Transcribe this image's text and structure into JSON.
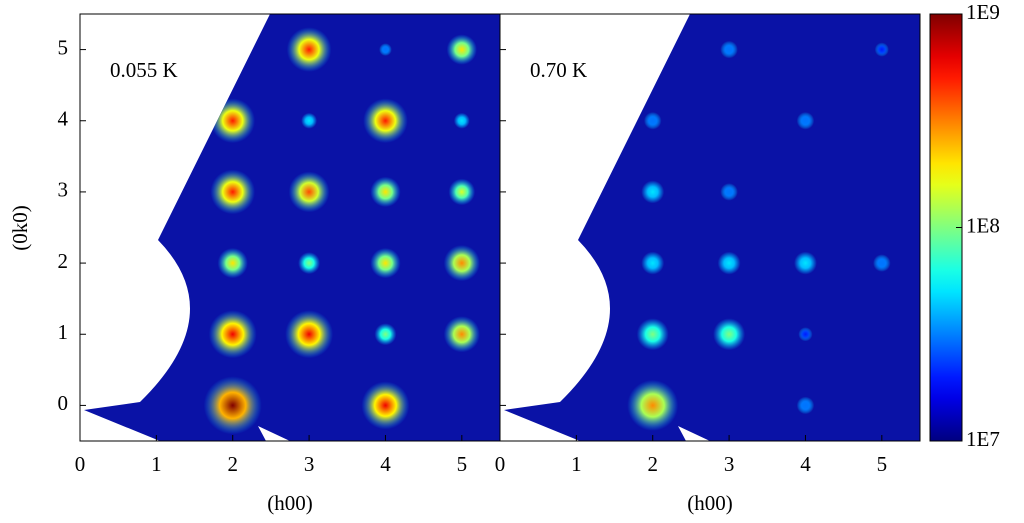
{
  "chart_data": [
    {
      "type": "spot-map",
      "annotation": "0.055 K",
      "xlabel": "(h00)",
      "ylabel": "(0k0)",
      "xlim": [
        0,
        5.5
      ],
      "ylim": [
        -0.5,
        5.5
      ],
      "xticks": [
        0,
        1,
        2,
        3,
        4,
        5
      ],
      "yticks": [
        0,
        1,
        2,
        3,
        4,
        5
      ],
      "zscale": "log",
      "colormap": "jet",
      "zlim": [
        10000000,
        1000000000
      ],
      "zticks": [
        {
          "value": 10000000,
          "label": "1E7"
        },
        {
          "value": 100000000,
          "label": "1E8"
        },
        {
          "value": 1000000000,
          "label": "1E9"
        }
      ],
      "x": [
        2,
        4,
        2,
        3,
        4,
        5,
        2,
        3,
        4,
        5,
        2,
        3,
        4,
        5,
        2,
        3,
        4,
        5,
        3,
        4,
        5
      ],
      "y": [
        0,
        0,
        1,
        1,
        1,
        1,
        2,
        2,
        2,
        2,
        3,
        3,
        3,
        3,
        4,
        4,
        4,
        4,
        5,
        5,
        5
      ],
      "values": [
        1000000000,
        600000000,
        600000000,
        600000000,
        100000000,
        300000000,
        200000000,
        100000000,
        200000000,
        300000000,
        500000000,
        400000000,
        200000000,
        150000000,
        500000000,
        50000000,
        500000000,
        50000000,
        500000000,
        30000000,
        200000000
      ]
    },
    {
      "type": "spot-map",
      "annotation": "0.70 K",
      "xlabel": "(h00)",
      "xlim": [
        0,
        5.5
      ],
      "ylim": [
        -0.5,
        5.5
      ],
      "xticks": [
        0,
        1,
        2,
        3,
        4,
        5
      ],
      "yticks": [
        0,
        1,
        2,
        3,
        4,
        5
      ],
      "zscale": "log",
      "colormap": "jet",
      "zlim": [
        10000000,
        1000000000
      ],
      "x": [
        2,
        4,
        2,
        3,
        4,
        2,
        3,
        4,
        5,
        2,
        3,
        2,
        4,
        3,
        5
      ],
      "y": [
        0,
        0,
        1,
        1,
        1,
        2,
        2,
        2,
        2,
        3,
        3,
        4,
        4,
        5,
        5
      ],
      "values": [
        300000000,
        30000000,
        100000000,
        100000000,
        20000000,
        50000000,
        50000000,
        50000000,
        30000000,
        50000000,
        30000000,
        30000000,
        30000000,
        30000000,
        20000000
      ]
    }
  ]
}
